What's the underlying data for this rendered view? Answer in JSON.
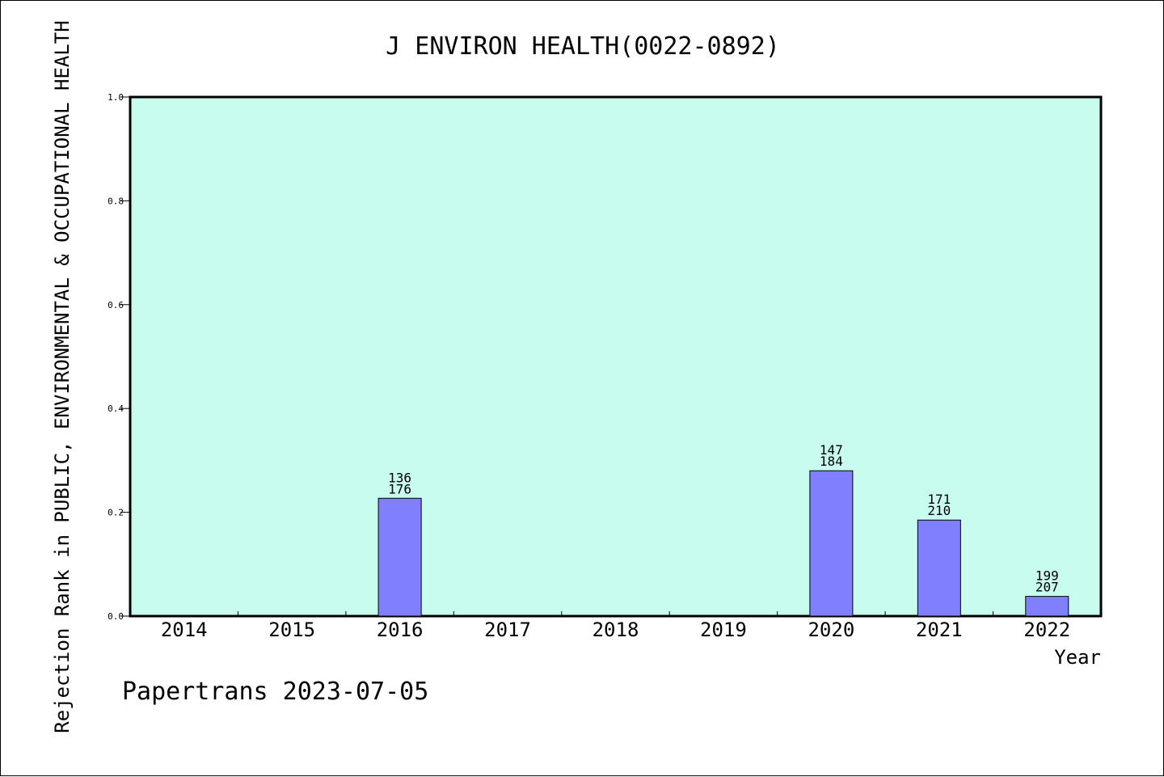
{
  "chart_data": {
    "type": "bar",
    "title": "J ENVIRON HEALTH(0022-0892)",
    "xlabel": "Year",
    "ylabel": "Rejection Rank in PUBLIC, ENVIRONMENTAL & OCCUPATIONAL HEALTH",
    "ylim": [
      0,
      1.0
    ],
    "yticks": [
      "0.0",
      "0.2",
      "0.4",
      "0.6",
      "0.8",
      "1.0"
    ],
    "categories": [
      "2014",
      "2015",
      "2016",
      "2017",
      "2018",
      "2019",
      "2020",
      "2021",
      "2022"
    ],
    "values": [
      null,
      null,
      0.227,
      null,
      null,
      null,
      0.28,
      0.185,
      0.038
    ],
    "bar_labels": [
      null,
      null,
      {
        "top": "136",
        "bottom": "176"
      },
      null,
      null,
      null,
      {
        "top": "147",
        "bottom": "184"
      },
      {
        "top": "171",
        "bottom": "210"
      },
      {
        "top": "199",
        "bottom": "207"
      }
    ],
    "colors": {
      "plot_background": "#c8fcee",
      "bar": "#8080ff"
    },
    "grid": false,
    "legend": "none"
  },
  "footer": "Papertrans 2023-07-05"
}
